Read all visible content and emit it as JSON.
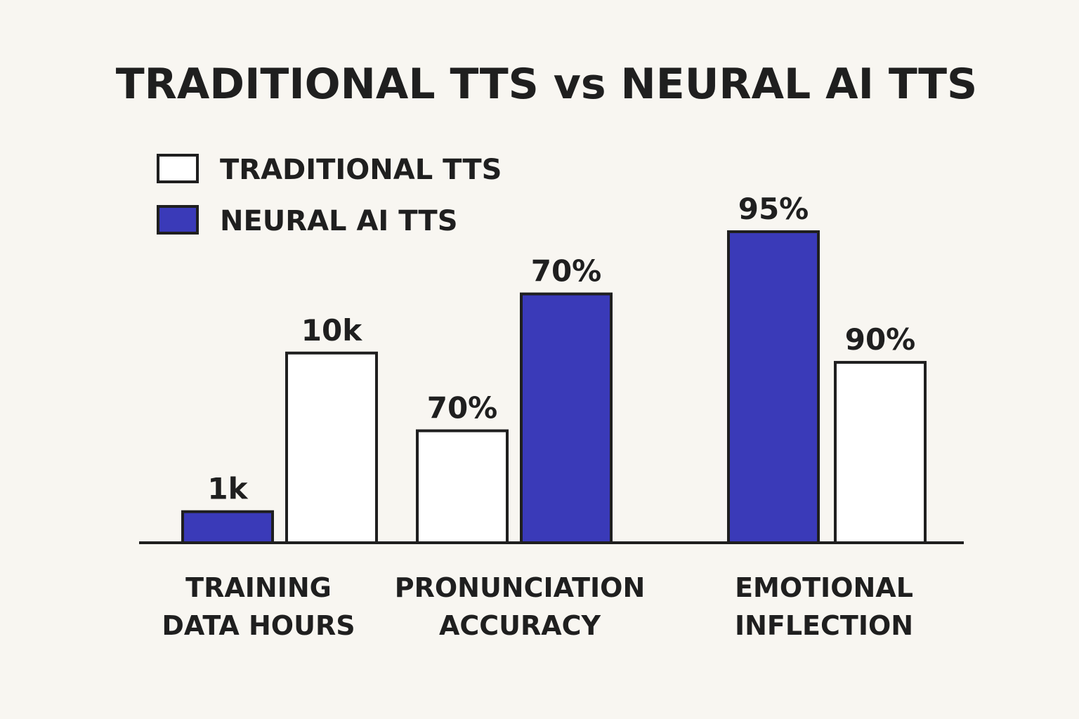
{
  "chart_data": {
    "type": "bar",
    "title": "TRADITIONAL TTS vs NEURAL AI TTS",
    "legend_position": "top-left",
    "legend": [
      {
        "name": "TRADITIONAL TTS",
        "color": "#ffffff"
      },
      {
        "name": "NEURAL AI TTS",
        "color": "#3a3ab8"
      }
    ],
    "categories": [
      {
        "lines": [
          "TRAINING",
          "DATA HOURS"
        ]
      },
      {
        "lines": [
          "PRONUNCIATION",
          "ACCURACY"
        ]
      },
      {
        "lines": [
          "EMOTIONAL",
          "INFLECTION"
        ]
      }
    ],
    "bars": [
      {
        "category": 0,
        "series": "NEURAL AI TTS",
        "value": 1000,
        "label": "1k"
      },
      {
        "category": 0,
        "series": "TRADITIONAL TTS",
        "value": 10000,
        "label": "10k"
      },
      {
        "category": 1,
        "series": "TRADITIONAL TTS",
        "value": 70,
        "label": "70%"
      },
      {
        "category": 1,
        "series": "NEURAL AI TTS",
        "value": 70,
        "label": "70%"
      },
      {
        "category": 2,
        "series": "NEURAL AI TTS",
        "value": 95,
        "label": "95%"
      },
      {
        "category": 2,
        "series": "TRADITIONAL TTS",
        "value": 90,
        "label": "90%"
      }
    ],
    "relative_heights": [
      0.1,
      0.61,
      0.36,
      0.8,
      1.0,
      0.58
    ],
    "xlabel": "",
    "ylabel": "",
    "grid": false,
    "axes_visible": false
  }
}
